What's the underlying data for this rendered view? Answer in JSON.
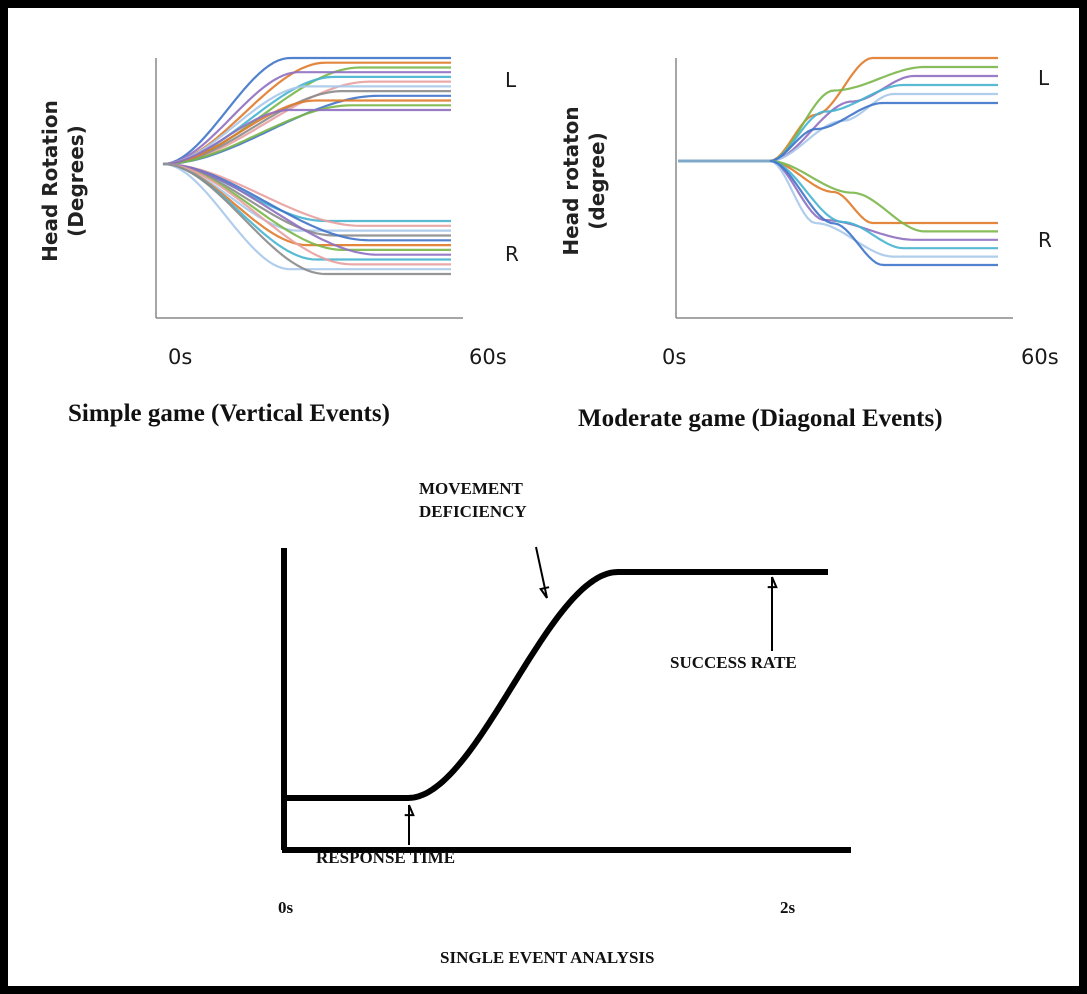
{
  "chart_data": [
    {
      "type": "line",
      "title": "Simple game (Vertical Events)",
      "ylabel": [
        "Head Rotation",
        "(Degrees)"
      ],
      "x_ticks": [
        "0s",
        "60s"
      ],
      "side_labels": [
        "L",
        "R"
      ],
      "colors": [
        "#3f73c9",
        "#e07a2a",
        "#7ab648",
        "#8e6fc0",
        "#45b4cf",
        "#e8a0a0",
        "#a9c8ea",
        "#8b8b8b"
      ],
      "series_count": 24
    },
    {
      "type": "line",
      "title": "Moderate game (Diagonal Events)",
      "ylabel": [
        "Head rotaton",
        "(degree)"
      ],
      "x_ticks": [
        "0s",
        "60s"
      ],
      "side_labels": [
        "L",
        "R"
      ],
      "colors": [
        "#e07a2a",
        "#7ab648",
        "#8e6fc0",
        "#45b4cf",
        "#a9c8ea",
        "#3f73c9"
      ],
      "series_count": 12
    },
    {
      "type": "line",
      "title": "SINGLE EVENT ANALYSIS",
      "x_ticks": [
        "0s",
        "2s"
      ],
      "annotations": {
        "movement": [
          "MOVEMENT",
          "DEFICIENCY"
        ],
        "success": "SUCCESS RATE",
        "response": "RESPONSE TIME"
      },
      "line_color": "#000000"
    }
  ]
}
